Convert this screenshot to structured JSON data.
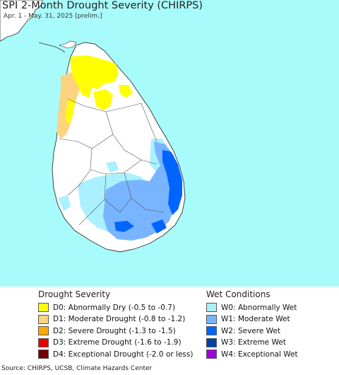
{
  "title": "SPI 2-Month Drought Severity (CHIRPS)",
  "subtitle": "Apr. 1 - May. 31, 2025 [prelim.]",
  "legend": {
    "drought_title": "Drought Severity",
    "drought_items": [
      {
        "label": "D0: Abnormally Dry (-0.5 to -0.7)",
        "color": "#ffff00"
      },
      {
        "label": "D1: Moderate Drought (-0.8 to -1.2)",
        "color": "#fcd37f"
      },
      {
        "label": "D2: Severe Drought (-1.3 to -1.5)",
        "color": "#ffaa00"
      },
      {
        "label": "D3: Extreme Drought (-1.6 to -1.9)",
        "color": "#e60000"
      },
      {
        "label": "D4: Exceptional Drought (-2.0 or less)",
        "color": "#730000"
      }
    ],
    "wet_title": "Wet Conditions",
    "wet_items": [
      {
        "label": "W0: Abnormally Wet",
        "color": "#aaf0ff"
      },
      {
        "label": "W1: Moderate Wet",
        "color": "#78b4ff"
      },
      {
        "label": "W2: Severe Wet",
        "color": "#0064ff"
      },
      {
        "label": "W3: Extreme Wet",
        "color": "#0041a5"
      },
      {
        "label": "W4: Exceptional Wet",
        "color": "#a000dc"
      }
    ]
  },
  "source": "Source: CHIRPS, UCSB, Climate Hazards Center",
  "colors": {
    "ocean": "#a8fbfb",
    "land": "#ffffff",
    "border": "#333333"
  }
}
